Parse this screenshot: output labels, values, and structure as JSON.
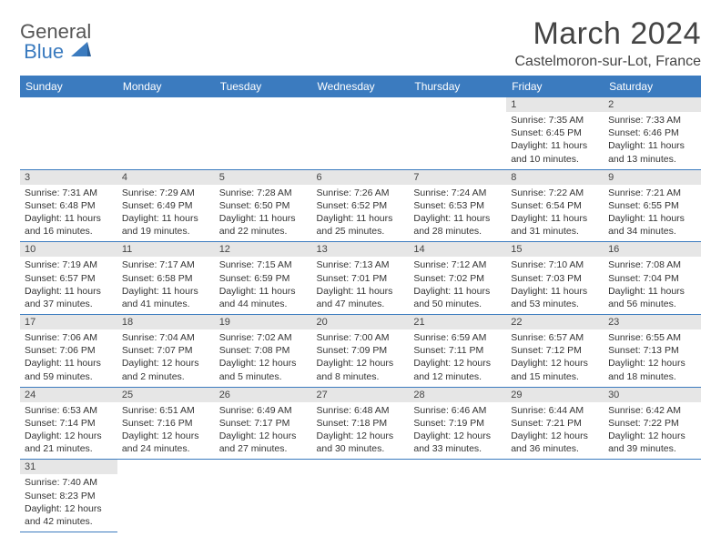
{
  "logo": {
    "line1": "General",
    "line2": "Blue"
  },
  "title": "March 2024",
  "location": "Castelmoron-sur-Lot, France",
  "colors": {
    "header_bg": "#3b7bbf",
    "header_text": "#ffffff",
    "daynum_bg": "#e6e6e6",
    "border": "#3b7bbf",
    "text": "#333333",
    "logo_blue": "#3b7bbf"
  },
  "dayNames": [
    "Sunday",
    "Monday",
    "Tuesday",
    "Wednesday",
    "Thursday",
    "Friday",
    "Saturday"
  ],
  "weeks": [
    [
      null,
      null,
      null,
      null,
      null,
      {
        "n": "1",
        "sunrise": "Sunrise: 7:35 AM",
        "sunset": "Sunset: 6:45 PM",
        "daylight": "Daylight: 11 hours and 10 minutes."
      },
      {
        "n": "2",
        "sunrise": "Sunrise: 7:33 AM",
        "sunset": "Sunset: 6:46 PM",
        "daylight": "Daylight: 11 hours and 13 minutes."
      }
    ],
    [
      {
        "n": "3",
        "sunrise": "Sunrise: 7:31 AM",
        "sunset": "Sunset: 6:48 PM",
        "daylight": "Daylight: 11 hours and 16 minutes."
      },
      {
        "n": "4",
        "sunrise": "Sunrise: 7:29 AM",
        "sunset": "Sunset: 6:49 PM",
        "daylight": "Daylight: 11 hours and 19 minutes."
      },
      {
        "n": "5",
        "sunrise": "Sunrise: 7:28 AM",
        "sunset": "Sunset: 6:50 PM",
        "daylight": "Daylight: 11 hours and 22 minutes."
      },
      {
        "n": "6",
        "sunrise": "Sunrise: 7:26 AM",
        "sunset": "Sunset: 6:52 PM",
        "daylight": "Daylight: 11 hours and 25 minutes."
      },
      {
        "n": "7",
        "sunrise": "Sunrise: 7:24 AM",
        "sunset": "Sunset: 6:53 PM",
        "daylight": "Daylight: 11 hours and 28 minutes."
      },
      {
        "n": "8",
        "sunrise": "Sunrise: 7:22 AM",
        "sunset": "Sunset: 6:54 PM",
        "daylight": "Daylight: 11 hours and 31 minutes."
      },
      {
        "n": "9",
        "sunrise": "Sunrise: 7:21 AM",
        "sunset": "Sunset: 6:55 PM",
        "daylight": "Daylight: 11 hours and 34 minutes."
      }
    ],
    [
      {
        "n": "10",
        "sunrise": "Sunrise: 7:19 AM",
        "sunset": "Sunset: 6:57 PM",
        "daylight": "Daylight: 11 hours and 37 minutes."
      },
      {
        "n": "11",
        "sunrise": "Sunrise: 7:17 AM",
        "sunset": "Sunset: 6:58 PM",
        "daylight": "Daylight: 11 hours and 41 minutes."
      },
      {
        "n": "12",
        "sunrise": "Sunrise: 7:15 AM",
        "sunset": "Sunset: 6:59 PM",
        "daylight": "Daylight: 11 hours and 44 minutes."
      },
      {
        "n": "13",
        "sunrise": "Sunrise: 7:13 AM",
        "sunset": "Sunset: 7:01 PM",
        "daylight": "Daylight: 11 hours and 47 minutes."
      },
      {
        "n": "14",
        "sunrise": "Sunrise: 7:12 AM",
        "sunset": "Sunset: 7:02 PM",
        "daylight": "Daylight: 11 hours and 50 minutes."
      },
      {
        "n": "15",
        "sunrise": "Sunrise: 7:10 AM",
        "sunset": "Sunset: 7:03 PM",
        "daylight": "Daylight: 11 hours and 53 minutes."
      },
      {
        "n": "16",
        "sunrise": "Sunrise: 7:08 AM",
        "sunset": "Sunset: 7:04 PM",
        "daylight": "Daylight: 11 hours and 56 minutes."
      }
    ],
    [
      {
        "n": "17",
        "sunrise": "Sunrise: 7:06 AM",
        "sunset": "Sunset: 7:06 PM",
        "daylight": "Daylight: 11 hours and 59 minutes."
      },
      {
        "n": "18",
        "sunrise": "Sunrise: 7:04 AM",
        "sunset": "Sunset: 7:07 PM",
        "daylight": "Daylight: 12 hours and 2 minutes."
      },
      {
        "n": "19",
        "sunrise": "Sunrise: 7:02 AM",
        "sunset": "Sunset: 7:08 PM",
        "daylight": "Daylight: 12 hours and 5 minutes."
      },
      {
        "n": "20",
        "sunrise": "Sunrise: 7:00 AM",
        "sunset": "Sunset: 7:09 PM",
        "daylight": "Daylight: 12 hours and 8 minutes."
      },
      {
        "n": "21",
        "sunrise": "Sunrise: 6:59 AM",
        "sunset": "Sunset: 7:11 PM",
        "daylight": "Daylight: 12 hours and 12 minutes."
      },
      {
        "n": "22",
        "sunrise": "Sunrise: 6:57 AM",
        "sunset": "Sunset: 7:12 PM",
        "daylight": "Daylight: 12 hours and 15 minutes."
      },
      {
        "n": "23",
        "sunrise": "Sunrise: 6:55 AM",
        "sunset": "Sunset: 7:13 PM",
        "daylight": "Daylight: 12 hours and 18 minutes."
      }
    ],
    [
      {
        "n": "24",
        "sunrise": "Sunrise: 6:53 AM",
        "sunset": "Sunset: 7:14 PM",
        "daylight": "Daylight: 12 hours and 21 minutes."
      },
      {
        "n": "25",
        "sunrise": "Sunrise: 6:51 AM",
        "sunset": "Sunset: 7:16 PM",
        "daylight": "Daylight: 12 hours and 24 minutes."
      },
      {
        "n": "26",
        "sunrise": "Sunrise: 6:49 AM",
        "sunset": "Sunset: 7:17 PM",
        "daylight": "Daylight: 12 hours and 27 minutes."
      },
      {
        "n": "27",
        "sunrise": "Sunrise: 6:48 AM",
        "sunset": "Sunset: 7:18 PM",
        "daylight": "Daylight: 12 hours and 30 minutes."
      },
      {
        "n": "28",
        "sunrise": "Sunrise: 6:46 AM",
        "sunset": "Sunset: 7:19 PM",
        "daylight": "Daylight: 12 hours and 33 minutes."
      },
      {
        "n": "29",
        "sunrise": "Sunrise: 6:44 AM",
        "sunset": "Sunset: 7:21 PM",
        "daylight": "Daylight: 12 hours and 36 minutes."
      },
      {
        "n": "30",
        "sunrise": "Sunrise: 6:42 AM",
        "sunset": "Sunset: 7:22 PM",
        "daylight": "Daylight: 12 hours and 39 minutes."
      }
    ],
    [
      {
        "n": "31",
        "sunrise": "Sunrise: 7:40 AM",
        "sunset": "Sunset: 8:23 PM",
        "daylight": "Daylight: 12 hours and 42 minutes."
      },
      null,
      null,
      null,
      null,
      null,
      null
    ]
  ]
}
